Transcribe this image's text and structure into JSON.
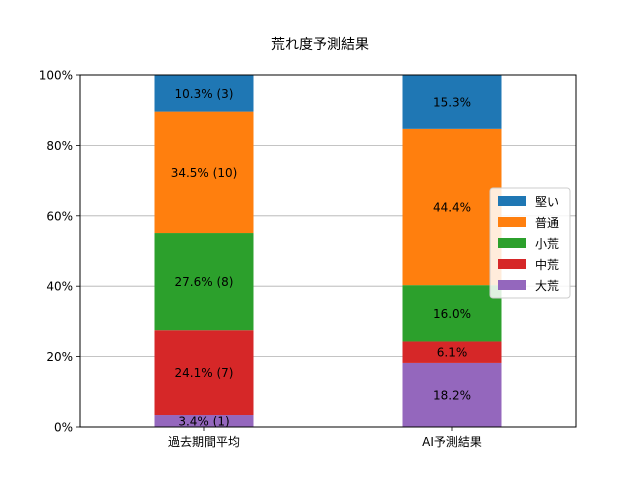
{
  "chart_data": {
    "type": "bar",
    "stacked": true,
    "title": "荒れ度予測結果",
    "xlabel": "",
    "ylabel": "",
    "ylim": [
      0,
      100
    ],
    "y_tick_labels": [
      "0%",
      "20%",
      "40%",
      "60%",
      "80%",
      "100%"
    ],
    "y_ticks": [
      0,
      20,
      40,
      60,
      80,
      100
    ],
    "grid": "horizontal",
    "legend_position": "right",
    "categories": [
      "過去期間平均",
      "AI予測結果"
    ],
    "series": [
      {
        "name": "大荒",
        "color": "#9467bd",
        "values": [
          3.4,
          18.2
        ],
        "labels": [
          "3.4% (1)",
          "18.2%"
        ]
      },
      {
        "name": "中荒",
        "color": "#d62728",
        "values": [
          24.1,
          6.1
        ],
        "labels": [
          "24.1% (7)",
          "6.1%"
        ]
      },
      {
        "name": "小荒",
        "color": "#2ca02c",
        "values": [
          27.6,
          16.0
        ],
        "labels": [
          "27.6% (8)",
          "16.0%"
        ]
      },
      {
        "name": "普通",
        "color": "#ff7f0e",
        "values": [
          34.5,
          44.4
        ],
        "labels": [
          "34.5% (10)",
          "44.4%"
        ]
      },
      {
        "name": "堅い",
        "color": "#1f77b4",
        "values": [
          10.3,
          15.3
        ],
        "labels": [
          "10.3% (3)",
          "15.3%"
        ]
      }
    ],
    "legend_order": [
      "堅い",
      "普通",
      "小荒",
      "中荒",
      "大荒"
    ]
  }
}
